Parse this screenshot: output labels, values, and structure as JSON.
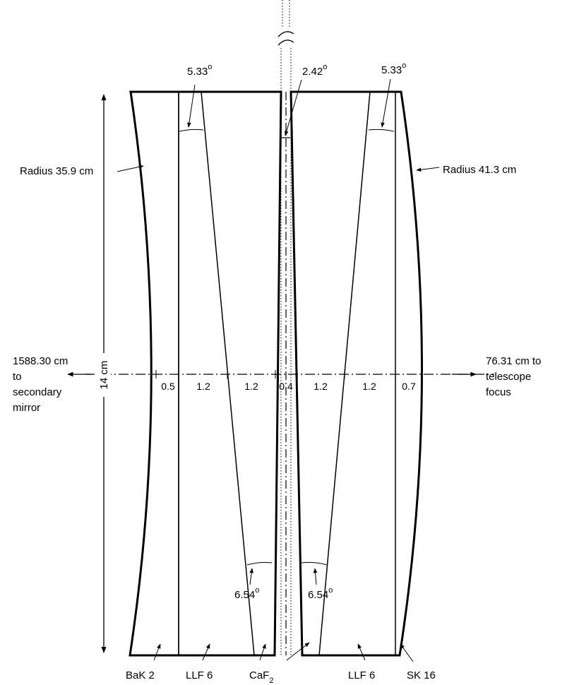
{
  "angles": {
    "top_left": "5.33",
    "top_center": "2.42",
    "top_right": "5.33",
    "bottom_left": "6.54",
    "bottom_right": "6.54",
    "degree_symbol": "o"
  },
  "radii": {
    "left": "Radius 35.9 cm",
    "right": "Radius 41.3 cm"
  },
  "height": "14 cm",
  "left_note": [
    "1588.30 cm",
    "to",
    "secondary",
    "mirror"
  ],
  "right_note": [
    "76.31 cm to",
    "telescope",
    "focus"
  ],
  "thicknesses": [
    "0.5",
    "1.2",
    "1.2",
    "0.4",
    "1.2",
    "1.2",
    "0.7"
  ],
  "materials": {
    "bak2": "BaK 2",
    "llf6_left": "LLF 6",
    "caf2_main": "CaF",
    "caf2_sub": "2",
    "llf6_right": "LLF 6",
    "sk16": "SK 16"
  }
}
